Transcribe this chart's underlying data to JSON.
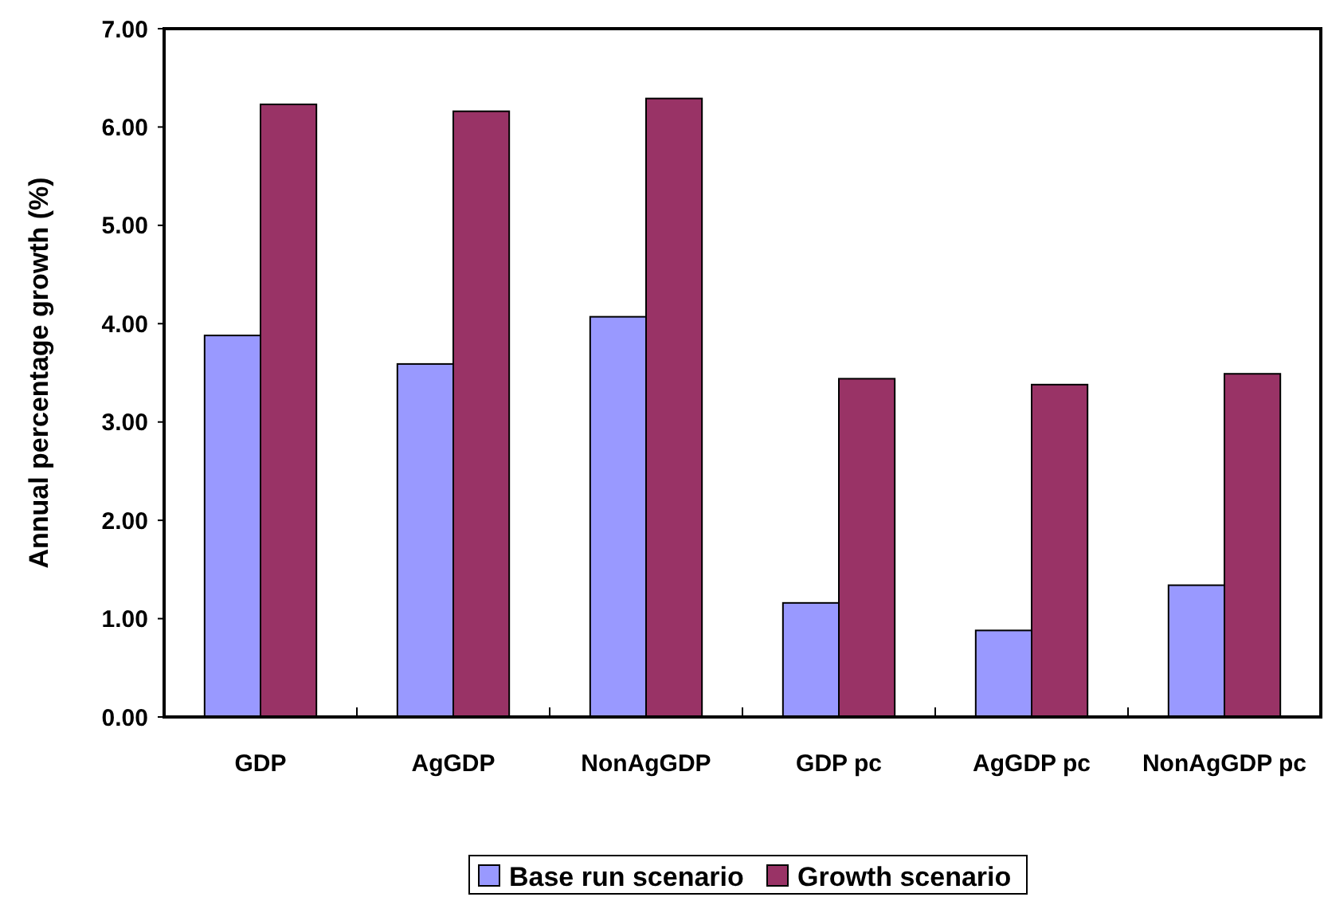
{
  "chart_data": {
    "type": "bar",
    "ylabel": "Annual percentage growth (%)",
    "categories": [
      "GDP",
      "AgGDP",
      "NonAgGDP",
      "GDP pc",
      "AgGDP pc",
      "NonAgGDP pc"
    ],
    "series": [
      {
        "name": "Base run scenario",
        "color": "#9999ff",
        "values": [
          3.88,
          3.59,
          4.07,
          1.16,
          0.88,
          1.34
        ]
      },
      {
        "name": "Growth scenario",
        "color": "#993366",
        "values": [
          6.23,
          6.16,
          6.29,
          3.44,
          3.38,
          3.49
        ]
      }
    ],
    "ylim": [
      0,
      7
    ],
    "yticks": [
      {
        "value": 0,
        "label": "0.00"
      },
      {
        "value": 1,
        "label": "1.00"
      },
      {
        "value": 2,
        "label": "2.00"
      },
      {
        "value": 3,
        "label": "3.00"
      },
      {
        "value": 4,
        "label": "4.00"
      },
      {
        "value": 5,
        "label": "5.00"
      },
      {
        "value": 6,
        "label": "6.00"
      },
      {
        "value": 7,
        "label": "7.00"
      }
    ],
    "legend": "bottom",
    "grid": false
  }
}
